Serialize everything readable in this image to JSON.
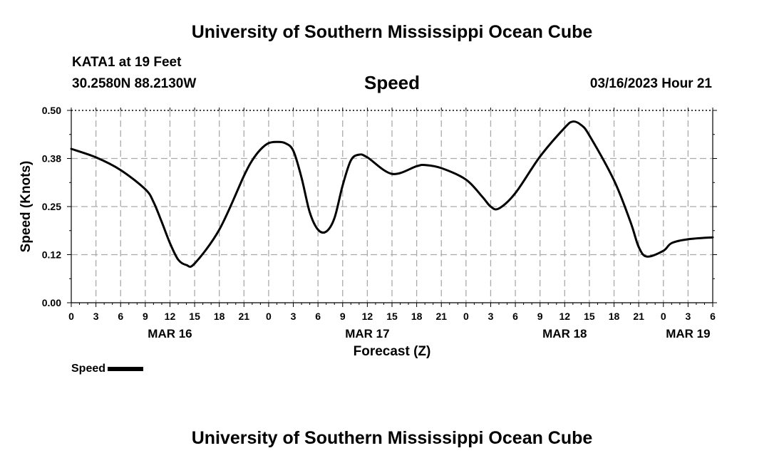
{
  "header": {
    "title_top": "University of Southern Mississippi Ocean Cube",
    "station": "KATA1 at 19 Feet",
    "location": "30.2580N  88.2130W",
    "datetime": "03/16/2023 Hour 21",
    "title_bottom": "University of Southern Mississippi Ocean Cube"
  },
  "legend": {
    "series_label": "Speed",
    "line_color": "#000000"
  },
  "chart_data": {
    "type": "line",
    "title": "Speed",
    "xlabel": "Forecast (Z)",
    "ylabel": "Speed (Knots)",
    "ylim": [
      0,
      0.5
    ],
    "xlim": [
      "2023-03-16T00:00Z",
      "2023-03-19T06:00Z"
    ],
    "y_ticks": [
      "0.00",
      "0.12",
      "0.25",
      "0.38",
      "0.50"
    ],
    "x_tick_labels": [
      "0",
      "3",
      "6",
      "9",
      "12",
      "15",
      "18",
      "21",
      "0",
      "3",
      "6",
      "9",
      "12",
      "15",
      "18",
      "21",
      "0",
      "3",
      "6",
      "9",
      "12",
      "15",
      "18",
      "21",
      "0",
      "3",
      "6"
    ],
    "date_labels": [
      {
        "label": "MAR 16",
        "at": "2023-03-16T12:00Z"
      },
      {
        "label": "MAR 17",
        "at": "2023-03-17T12:00Z"
      },
      {
        "label": "MAR 18",
        "at": "2023-03-18T12:00Z"
      },
      {
        "label": "MAR 19",
        "at": "2023-03-19T03:00Z"
      }
    ],
    "grid": true,
    "legend_position": "bottom-left",
    "series": [
      {
        "name": "Speed",
        "color": "#000000",
        "x": [
          "2023-03-16T00:00Z",
          "2023-03-16T03:00Z",
          "2023-03-16T06:00Z",
          "2023-03-16T09:00Z",
          "2023-03-16T10:00Z",
          "2023-03-16T11:00Z",
          "2023-03-16T12:00Z",
          "2023-03-16T13:00Z",
          "2023-03-16T14:00Z",
          "2023-03-16T15:00Z",
          "2023-03-16T18:00Z",
          "2023-03-16T21:00Z",
          "2023-03-16T22:00Z",
          "2023-03-16T23:00Z",
          "2023-03-17T00:00Z",
          "2023-03-17T01:00Z",
          "2023-03-17T02:00Z",
          "2023-03-17T03:00Z",
          "2023-03-17T04:00Z",
          "2023-03-17T05:00Z",
          "2023-03-17T06:00Z",
          "2023-03-17T07:00Z",
          "2023-03-17T08:00Z",
          "2023-03-17T09:00Z",
          "2023-03-17T10:00Z",
          "2023-03-17T11:00Z",
          "2023-03-17T12:00Z",
          "2023-03-17T15:00Z",
          "2023-03-17T18:00Z",
          "2023-03-17T19:00Z",
          "2023-03-17T21:00Z",
          "2023-03-18T00:00Z",
          "2023-03-18T02:00Z",
          "2023-03-18T03:00Z",
          "2023-03-18T04:00Z",
          "2023-03-18T06:00Z",
          "2023-03-18T09:00Z",
          "2023-03-18T12:00Z",
          "2023-03-18T13:00Z",
          "2023-03-18T14:00Z",
          "2023-03-18T15:00Z",
          "2023-03-18T18:00Z",
          "2023-03-18T20:00Z",
          "2023-03-18T21:00Z",
          "2023-03-18T22:00Z",
          "2023-03-19T00:00Z",
          "2023-03-19T01:00Z",
          "2023-03-19T03:00Z",
          "2023-03-19T06:00Z"
        ],
        "y": [
          0.4,
          0.378,
          0.345,
          0.295,
          0.262,
          0.21,
          0.155,
          0.112,
          0.098,
          0.102,
          0.19,
          0.33,
          0.37,
          0.398,
          0.415,
          0.418,
          0.415,
          0.395,
          0.325,
          0.235,
          0.19,
          0.185,
          0.22,
          0.305,
          0.37,
          0.385,
          0.378,
          0.335,
          0.355,
          0.358,
          0.35,
          0.32,
          0.275,
          0.25,
          0.245,
          0.285,
          0.38,
          0.455,
          0.471,
          0.462,
          0.435,
          0.318,
          0.21,
          0.145,
          0.12,
          0.135,
          0.155,
          0.165,
          0.17
        ]
      }
    ]
  }
}
